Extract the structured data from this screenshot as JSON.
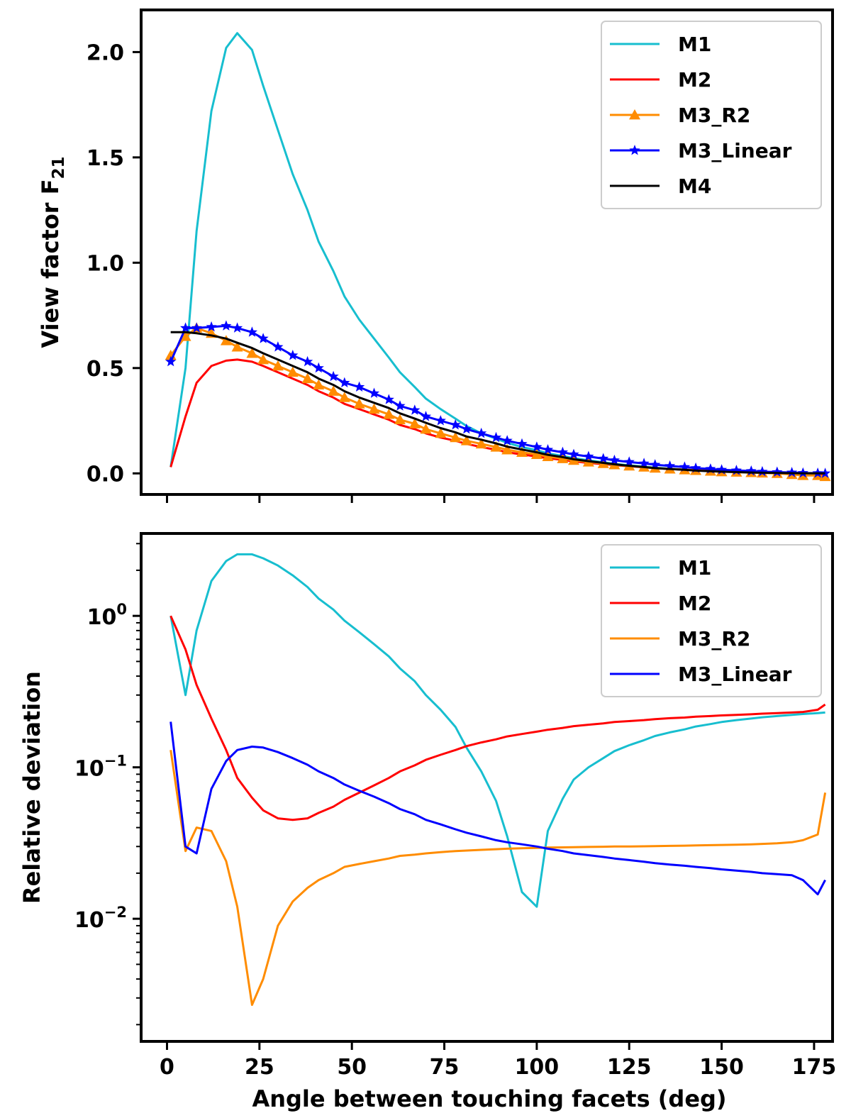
{
  "chart_data": [
    {
      "type": "line",
      "title": "",
      "xlabel": "",
      "ylabel": "View factor F",
      "ylabel_sub": "21",
      "xlim": [
        -7,
        180
      ],
      "ylim": [
        -0.1,
        2.2
      ],
      "yscale": "linear",
      "xticks": [
        0,
        25,
        50,
        75,
        100,
        125,
        150,
        175
      ],
      "show_xtick_labels": false,
      "yticks": [
        {
          "v": 0.0,
          "label": "0.0"
        },
        {
          "v": 0.5,
          "label": "0.5"
        },
        {
          "v": 1.0,
          "label": "1.0"
        },
        {
          "v": 1.5,
          "label": "1.5"
        },
        {
          "v": 2.0,
          "label": "2.0"
        }
      ],
      "grid": false,
      "legend": "top-right",
      "series": [
        {
          "name": "M1",
          "color": "#17becf",
          "marker": "none",
          "x": [
            1,
            5,
            8,
            12,
            16,
            19,
            23,
            26,
            30,
            34,
            38,
            41,
            45,
            48,
            52,
            56,
            60,
            63,
            67,
            70,
            74,
            78,
            81,
            85,
            89,
            92,
            96,
            100,
            103,
            107,
            110,
            114,
            118,
            121,
            125,
            129,
            132,
            136,
            140,
            143,
            147,
            150,
            154,
            158,
            161,
            165,
            169,
            172,
            176,
            178
          ],
          "y": [
            0.03,
            0.5,
            1.15,
            1.72,
            2.02,
            2.09,
            2.01,
            1.84,
            1.63,
            1.42,
            1.25,
            1.1,
            0.96,
            0.84,
            0.73,
            0.64,
            0.55,
            0.48,
            0.41,
            0.355,
            0.305,
            0.26,
            0.225,
            0.19,
            0.165,
            0.145,
            0.125,
            0.11,
            0.095,
            0.083,
            0.072,
            0.062,
            0.053,
            0.045,
            0.038,
            0.032,
            0.027,
            0.022,
            0.018,
            0.015,
            0.012,
            0.009,
            0.007,
            0.005,
            0.004,
            0.003,
            0.002,
            0.001,
            0.001,
            0.0
          ]
        },
        {
          "name": "M2",
          "color": "#ff0000",
          "marker": "none",
          "x": [
            1,
            5,
            8,
            12,
            16,
            19,
            23,
            26,
            30,
            34,
            38,
            41,
            45,
            48,
            52,
            56,
            60,
            63,
            67,
            70,
            74,
            78,
            81,
            85,
            89,
            92,
            96,
            100,
            103,
            107,
            110,
            114,
            118,
            121,
            125,
            129,
            132,
            136,
            140,
            143,
            147,
            150,
            154,
            158,
            161,
            165,
            169,
            172,
            176,
            178
          ],
          "y": [
            0.03,
            0.27,
            0.43,
            0.51,
            0.535,
            0.54,
            0.53,
            0.51,
            0.48,
            0.45,
            0.42,
            0.39,
            0.36,
            0.33,
            0.305,
            0.28,
            0.255,
            0.23,
            0.21,
            0.19,
            0.17,
            0.155,
            0.14,
            0.125,
            0.112,
            0.1,
            0.09,
            0.08,
            0.072,
            0.064,
            0.057,
            0.05,
            0.044,
            0.039,
            0.034,
            0.029,
            0.025,
            0.021,
            0.018,
            0.015,
            0.012,
            0.01,
            0.008,
            0.006,
            0.004,
            0.003,
            0.002,
            0.001,
            0.0,
            -0.01
          ]
        },
        {
          "name": "M3_R2",
          "color": "#ff8c00",
          "marker": "triangle",
          "x": [
            1,
            5,
            8,
            12,
            16,
            19,
            23,
            26,
            30,
            34,
            38,
            41,
            45,
            48,
            52,
            56,
            60,
            63,
            67,
            70,
            74,
            78,
            81,
            85,
            89,
            92,
            96,
            100,
            103,
            107,
            110,
            114,
            118,
            121,
            125,
            129,
            132,
            136,
            140,
            143,
            147,
            150,
            154,
            158,
            161,
            165,
            169,
            172,
            176,
            178
          ],
          "y": [
            0.56,
            0.65,
            0.69,
            0.665,
            0.63,
            0.6,
            0.57,
            0.54,
            0.51,
            0.48,
            0.45,
            0.42,
            0.39,
            0.36,
            0.33,
            0.305,
            0.28,
            0.255,
            0.235,
            0.21,
            0.19,
            0.17,
            0.155,
            0.14,
            0.125,
            0.112,
            0.1,
            0.09,
            0.08,
            0.07,
            0.062,
            0.054,
            0.047,
            0.041,
            0.035,
            0.03,
            0.025,
            0.021,
            0.017,
            0.014,
            0.011,
            0.008,
            0.006,
            0.004,
            0.002,
            0.0,
            -0.005,
            -0.01,
            -0.01,
            -0.015
          ]
        },
        {
          "name": "M3_Linear",
          "color": "#0000ff",
          "marker": "star",
          "x": [
            1,
            5,
            8,
            12,
            16,
            19,
            23,
            26,
            30,
            34,
            38,
            41,
            45,
            48,
            52,
            56,
            60,
            63,
            67,
            70,
            74,
            78,
            81,
            85,
            89,
            92,
            96,
            100,
            103,
            107,
            110,
            114,
            118,
            121,
            125,
            129,
            132,
            136,
            140,
            143,
            147,
            150,
            154,
            158,
            161,
            165,
            169,
            172,
            176,
            178
          ],
          "y": [
            0.53,
            0.69,
            0.69,
            0.695,
            0.7,
            0.69,
            0.67,
            0.64,
            0.6,
            0.56,
            0.53,
            0.5,
            0.46,
            0.43,
            0.41,
            0.38,
            0.35,
            0.32,
            0.3,
            0.27,
            0.25,
            0.23,
            0.21,
            0.19,
            0.17,
            0.155,
            0.14,
            0.125,
            0.112,
            0.1,
            0.09,
            0.08,
            0.07,
            0.062,
            0.054,
            0.047,
            0.041,
            0.035,
            0.03,
            0.025,
            0.021,
            0.017,
            0.014,
            0.011,
            0.008,
            0.006,
            0.004,
            0.002,
            0.001,
            0.0
          ]
        },
        {
          "name": "M4",
          "color": "#000000",
          "marker": "none",
          "x": [
            1,
            5,
            8,
            12,
            16,
            19,
            23,
            26,
            30,
            34,
            38,
            41,
            45,
            48,
            52,
            56,
            60,
            63,
            67,
            70,
            74,
            78,
            81,
            85,
            89,
            92,
            96,
            100,
            103,
            107,
            110,
            114,
            118,
            121,
            125,
            129,
            132,
            136,
            140,
            143,
            147,
            150,
            154,
            158,
            161,
            165,
            169,
            172,
            176,
            178
          ],
          "y": [
            0.67,
            0.67,
            0.665,
            0.655,
            0.64,
            0.62,
            0.595,
            0.57,
            0.54,
            0.51,
            0.48,
            0.45,
            0.42,
            0.39,
            0.36,
            0.335,
            0.31,
            0.285,
            0.26,
            0.24,
            0.215,
            0.195,
            0.175,
            0.16,
            0.142,
            0.127,
            0.113,
            0.1,
            0.088,
            0.077,
            0.067,
            0.058,
            0.05,
            0.043,
            0.036,
            0.03,
            0.025,
            0.021,
            0.017,
            0.013,
            0.01,
            0.008,
            0.006,
            0.004,
            0.003,
            0.002,
            0.001,
            0.0,
            0.0,
            0.0
          ]
        }
      ]
    },
    {
      "type": "line",
      "title": "",
      "xlabel": "Angle between touching facets (deg)",
      "ylabel": "Relative deviation",
      "xlim": [
        -7,
        180
      ],
      "ylim": [
        0.00155,
        3.5
      ],
      "yscale": "log",
      "xticks": [
        0,
        25,
        50,
        75,
        100,
        125,
        150,
        175
      ],
      "show_xtick_labels": true,
      "yticks": [
        {
          "v": 0.01,
          "base": "10",
          "exp": "−2"
        },
        {
          "v": 0.1,
          "base": "10",
          "exp": "−1"
        },
        {
          "v": 1,
          "base": "10",
          "exp": "0"
        }
      ],
      "grid": false,
      "legend": "top-right",
      "series": [
        {
          "name": "M1",
          "color": "#17becf",
          "marker": "none",
          "x": [
            1,
            5,
            8,
            12,
            16,
            19,
            23,
            26,
            30,
            34,
            38,
            41,
            45,
            48,
            52,
            56,
            60,
            63,
            67,
            70,
            74,
            78,
            81,
            85,
            89,
            92,
            96,
            100,
            103,
            107,
            110,
            114,
            118,
            121,
            125,
            129,
            132,
            136,
            140,
            143,
            147,
            150,
            154,
            158,
            161,
            165,
            169,
            172,
            176,
            178
          ],
          "y": [
            1.0,
            0.3,
            0.8,
            1.7,
            2.3,
            2.55,
            2.55,
            2.4,
            2.15,
            1.85,
            1.55,
            1.3,
            1.1,
            0.93,
            0.78,
            0.65,
            0.54,
            0.45,
            0.37,
            0.3,
            0.24,
            0.185,
            0.135,
            0.094,
            0.06,
            0.035,
            0.015,
            0.012,
            0.038,
            0.062,
            0.083,
            0.1,
            0.115,
            0.128,
            0.14,
            0.151,
            0.161,
            0.17,
            0.178,
            0.186,
            0.193,
            0.199,
            0.205,
            0.21,
            0.214,
            0.218,
            0.222,
            0.225,
            0.228,
            0.23
          ]
        },
        {
          "name": "M2",
          "color": "#ff0000",
          "marker": "none",
          "x": [
            1,
            5,
            8,
            12,
            16,
            19,
            23,
            26,
            30,
            34,
            38,
            41,
            45,
            48,
            52,
            56,
            60,
            63,
            67,
            70,
            74,
            78,
            81,
            85,
            89,
            92,
            96,
            100,
            103,
            107,
            110,
            114,
            118,
            121,
            125,
            129,
            132,
            136,
            140,
            143,
            147,
            150,
            154,
            158,
            161,
            165,
            169,
            172,
            176,
            178
          ],
          "y": [
            1.0,
            0.6,
            0.35,
            0.21,
            0.13,
            0.085,
            0.063,
            0.052,
            0.046,
            0.045,
            0.046,
            0.05,
            0.055,
            0.061,
            0.068,
            0.076,
            0.085,
            0.094,
            0.103,
            0.112,
            0.121,
            0.13,
            0.138,
            0.146,
            0.153,
            0.16,
            0.166,
            0.172,
            0.177,
            0.182,
            0.187,
            0.191,
            0.195,
            0.199,
            0.202,
            0.205,
            0.208,
            0.211,
            0.213,
            0.216,
            0.218,
            0.22,
            0.222,
            0.224,
            0.226,
            0.228,
            0.23,
            0.232,
            0.24,
            0.26
          ]
        },
        {
          "name": "M3_R2",
          "color": "#ff8c00",
          "marker": "none",
          "x": [
            1,
            5,
            8,
            12,
            16,
            19,
            23,
            26,
            30,
            34,
            38,
            41,
            45,
            48,
            52,
            56,
            60,
            63,
            67,
            70,
            74,
            78,
            81,
            85,
            89,
            92,
            96,
            100,
            103,
            107,
            110,
            114,
            118,
            121,
            125,
            129,
            132,
            136,
            140,
            143,
            147,
            150,
            154,
            158,
            161,
            165,
            169,
            172,
            176,
            178
          ],
          "y": [
            0.13,
            0.028,
            0.04,
            0.038,
            0.024,
            0.012,
            0.0027,
            0.004,
            0.009,
            0.013,
            0.016,
            0.018,
            0.02,
            0.022,
            0.023,
            0.024,
            0.025,
            0.026,
            0.0265,
            0.027,
            0.0275,
            0.028,
            0.0282,
            0.0285,
            0.0288,
            0.029,
            0.0292,
            0.0294,
            0.0295,
            0.0296,
            0.0297,
            0.0298,
            0.0299,
            0.03,
            0.03,
            0.0301,
            0.0302,
            0.0303,
            0.0304,
            0.0305,
            0.0306,
            0.0307,
            0.0308,
            0.031,
            0.0312,
            0.0315,
            0.032,
            0.033,
            0.036,
            0.068
          ]
        },
        {
          "name": "M3_Linear",
          "color": "#0000ff",
          "marker": "none",
          "x": [
            1,
            5,
            8,
            12,
            16,
            19,
            23,
            26,
            30,
            34,
            38,
            41,
            45,
            48,
            52,
            56,
            60,
            63,
            67,
            70,
            74,
            78,
            81,
            85,
            89,
            92,
            96,
            100,
            103,
            107,
            110,
            114,
            118,
            121,
            125,
            129,
            132,
            136,
            140,
            143,
            147,
            150,
            154,
            158,
            161,
            165,
            169,
            172,
            176,
            178
          ],
          "y": [
            0.2,
            0.03,
            0.027,
            0.072,
            0.11,
            0.13,
            0.137,
            0.135,
            0.126,
            0.115,
            0.104,
            0.094,
            0.085,
            0.077,
            0.07,
            0.064,
            0.058,
            0.053,
            0.049,
            0.045,
            0.042,
            0.039,
            0.037,
            0.035,
            0.033,
            0.032,
            0.031,
            0.03,
            0.029,
            0.028,
            0.027,
            0.0263,
            0.0256,
            0.025,
            0.0244,
            0.0238,
            0.0233,
            0.0228,
            0.0224,
            0.022,
            0.0216,
            0.0212,
            0.0208,
            0.0204,
            0.02,
            0.0197,
            0.0194,
            0.018,
            0.0145,
            0.018
          ]
        }
      ]
    }
  ]
}
